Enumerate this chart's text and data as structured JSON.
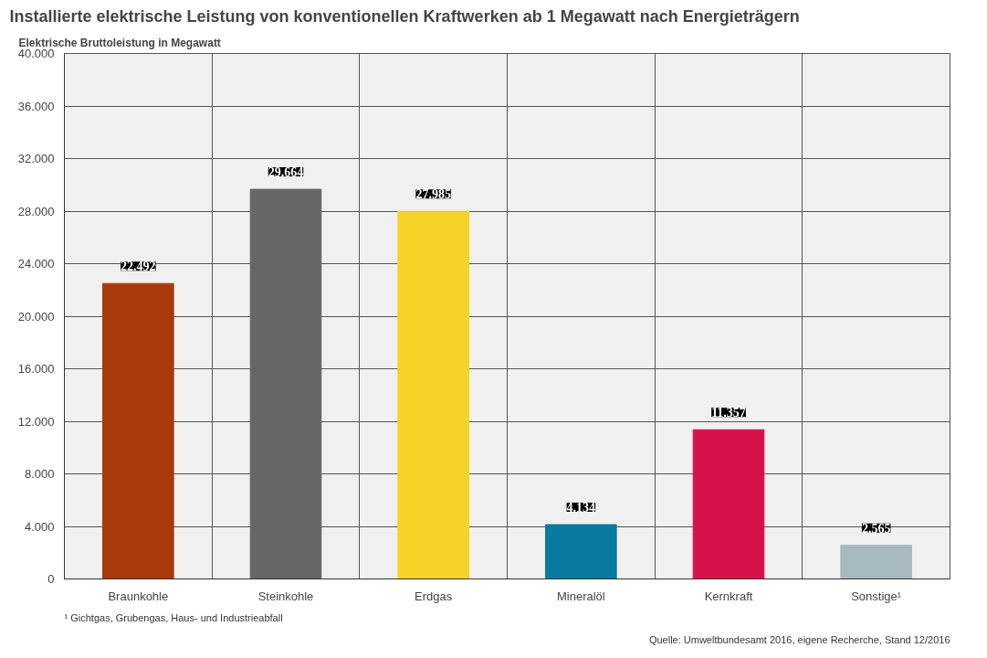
{
  "chart_data": {
    "type": "bar",
    "title": "Installierte elektrische Leistung von konventionellen Kraftwerken ab 1 Megawatt nach Energieträgern",
    "ylabel": "Elektrische Bruttoleistung in Megawatt",
    "categories": [
      "Braunkohle",
      "Steinkohle",
      "Erdgas",
      "Mineralöl",
      "Kernkraft",
      "Sonstige¹"
    ],
    "values": [
      22492,
      29664,
      27985,
      4134,
      11357,
      2565
    ],
    "colors": [
      "#a83a0a",
      "#666666",
      "#f5d327",
      "#0a7aa0",
      "#d6124a",
      "#a8b8c0"
    ],
    "value_labels": [
      "22.492",
      "29.664",
      "27.985",
      "4.134",
      "11.357",
      "2.565"
    ],
    "ylim": [
      0,
      40000
    ],
    "yticks": [
      {
        "value": 0,
        "label": "0"
      },
      {
        "value": 4000,
        "label": "4.000"
      },
      {
        "value": 8000,
        "label": "8.000"
      },
      {
        "value": 12000,
        "label": "12.000"
      },
      {
        "value": 16000,
        "label": "16.000"
      },
      {
        "value": 20000,
        "label": "20.000"
      },
      {
        "value": 24000,
        "label": "24.000"
      },
      {
        "value": 28000,
        "label": "28.000"
      },
      {
        "value": 32000,
        "label": "32.000"
      },
      {
        "value": 36000,
        "label": "36.000"
      },
      {
        "value": 40000,
        "label": "40.000"
      }
    ],
    "grid": true,
    "annotations": [
      "¹ Gichtgas, Grubengas, Haus- und Industrieabfall",
      "Quelle: Umweltbundesamt 2016, eigene Recherche, Stand 12/2016"
    ]
  }
}
